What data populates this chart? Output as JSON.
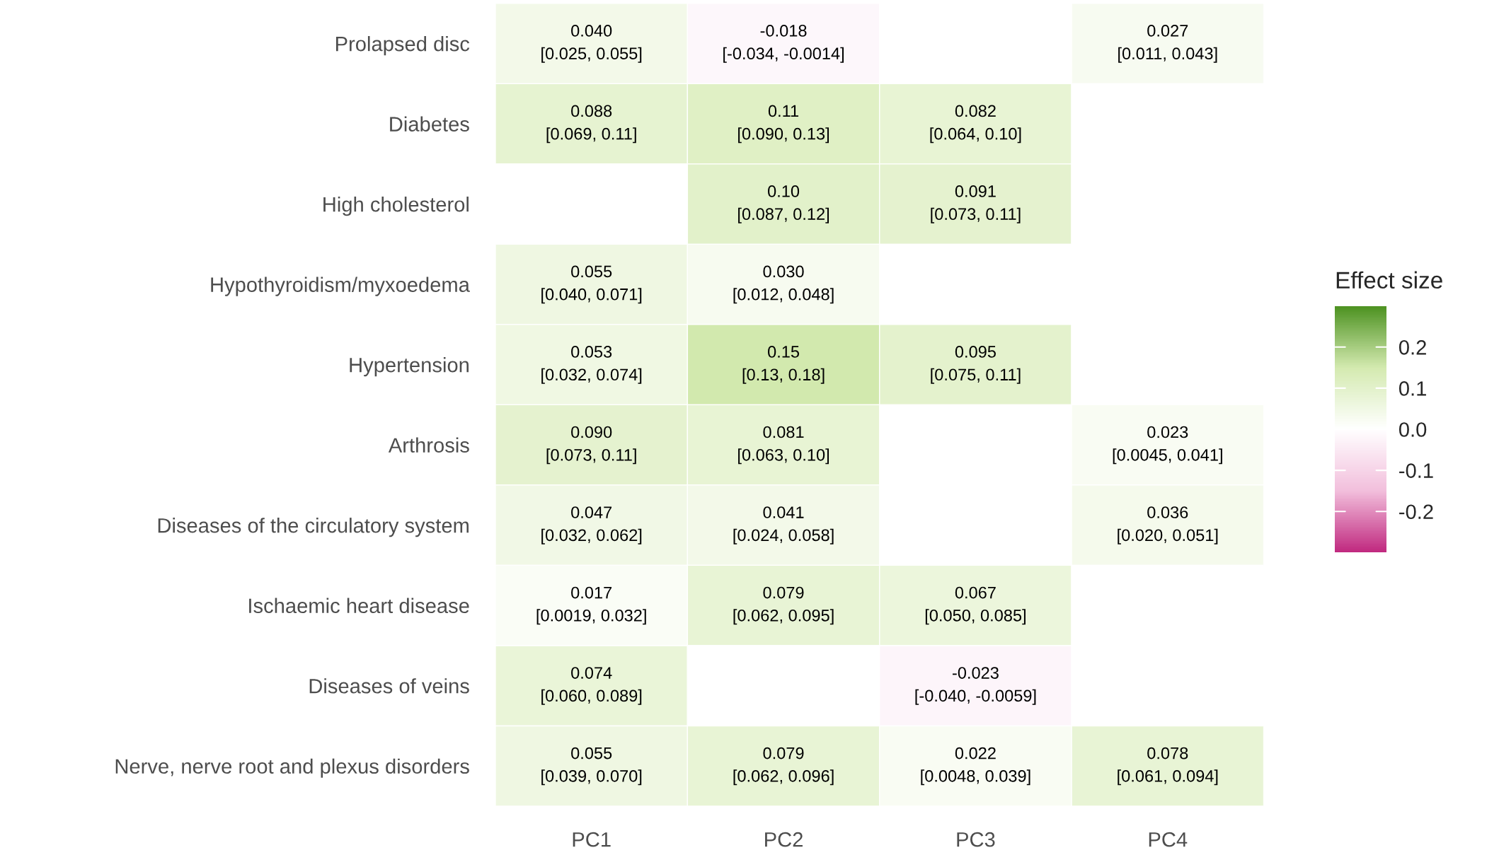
{
  "chart_data": {
    "type": "heatmap",
    "categories": [
      "PC1",
      "PC2",
      "PC3",
      "PC4"
    ],
    "y_categories": [
      "Prolapsed disc",
      "Diabetes",
      "High cholesterol",
      "Hypothyroidism/myxoedema",
      "Hypertension",
      "Arthrosis",
      "Diseases of the circulatory system",
      "Ischaemic heart disease",
      "Diseases of veins",
      "Nerve, nerve root and plexus disorders"
    ],
    "cells": [
      [
        0.04,
        -0.018,
        null,
        0.027
      ],
      [
        0.088,
        0.11,
        0.082,
        null
      ],
      [
        null,
        0.1,
        0.091,
        null
      ],
      [
        0.055,
        0.03,
        null,
        null
      ],
      [
        0.053,
        0.15,
        0.095,
        null
      ],
      [
        0.09,
        0.081,
        null,
        0.023
      ],
      [
        0.047,
        0.041,
        null,
        0.036
      ],
      [
        0.017,
        0.079,
        0.067,
        null
      ],
      [
        0.074,
        null,
        -0.023,
        null
      ],
      [
        0.055,
        0.079,
        0.022,
        0.078
      ]
    ],
    "cell_labels": [
      [
        "0.040\n[0.025, 0.055]",
        "-0.018\n[-0.034, -0.0014]",
        null,
        "0.027\n[0.011, 0.043]"
      ],
      [
        "0.088\n[0.069, 0.11]",
        "0.11\n[0.090, 0.13]",
        "0.082\n[0.064, 0.10]",
        null
      ],
      [
        null,
        "0.10\n[0.087, 0.12]",
        "0.091\n[0.073, 0.11]",
        null
      ],
      [
        "0.055\n[0.040, 0.071]",
        "0.030\n[0.012, 0.048]",
        null,
        null
      ],
      [
        "0.053\n[0.032, 0.074]",
        "0.15\n[0.13, 0.18]",
        "0.095\n[0.075, 0.11]",
        null
      ],
      [
        "0.090\n[0.073, 0.11]",
        "0.081\n[0.063, 0.10]",
        null,
        "0.023\n[0.0045, 0.041]"
      ],
      [
        "0.047\n[0.032, 0.062]",
        "0.041\n[0.024, 0.058]",
        null,
        "0.036\n[0.020, 0.051]"
      ],
      [
        "0.017\n[0.0019, 0.032]",
        "0.079\n[0.062, 0.095]",
        "0.067\n[0.050, 0.085]",
        null
      ],
      [
        "0.074\n[0.060, 0.089]",
        null,
        "-0.023\n[-0.040, -0.0059]",
        null
      ],
      [
        "0.055\n[0.039, 0.070]",
        "0.079\n[0.062, 0.096]",
        "0.022\n[0.0048, 0.039]",
        "0.078\n[0.061, 0.094]"
      ]
    ],
    "clabel": "Effect size",
    "clim": [
      -0.3,
      0.3
    ],
    "cticks": [
      {
        "value": 0.2,
        "label": "0.2"
      },
      {
        "value": 0.1,
        "label": "0.1"
      },
      {
        "value": 0,
        "label": "0.0"
      },
      {
        "value": -0.1,
        "label": "-0.1"
      },
      {
        "value": -0.2,
        "label": "-0.2"
      }
    ]
  }
}
